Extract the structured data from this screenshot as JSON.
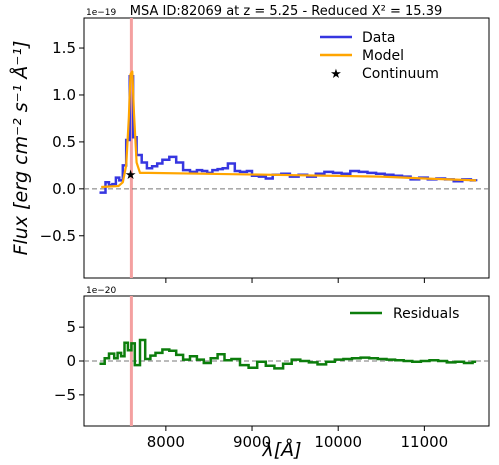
{
  "chart_data": [
    {
      "type": "line",
      "title": "MSA ID:82069 at z = 5.25 - Reduced X² = 15.39",
      "ylabel": "Flux [erg cm⁻² s⁻¹ Å⁻¹]",
      "xlabel": "",
      "y_multiplier_label": "1e−19",
      "xlim": [
        7050,
        11750
      ],
      "ylim": [
        -0.95,
        1.82
      ],
      "y_scale": 1e-19,
      "y_ticks": [
        -0.5,
        0.0,
        0.5,
        1.0,
        1.5
      ],
      "y_tick_labels": [
        "−0.5",
        "0.0",
        "0.5",
        "1.0",
        "1.5"
      ],
      "vline_x": 7600,
      "hline_y": 0.0,
      "legend_position": "top-right",
      "series": [
        {
          "name": "Data",
          "color": "#3636e0",
          "style": "step",
          "x": [
            7230,
            7300,
            7340,
            7380,
            7420,
            7460,
            7500,
            7540,
            7580,
            7620,
            7660,
            7720,
            7780,
            7840,
            7900,
            7960,
            8040,
            8120,
            8200,
            8280,
            8360,
            8420,
            8480,
            8540,
            8600,
            8660,
            8720,
            8800,
            8860,
            8940,
            9000,
            9080,
            9160,
            9240,
            9340,
            9440,
            9540,
            9640,
            9740,
            9840,
            9940,
            10040,
            10140,
            10240,
            10340,
            10440,
            10540,
            10640,
            10740,
            10840,
            10940,
            11040,
            11140,
            11240,
            11340,
            11440,
            11540,
            11600
          ],
          "values": [
            -0.04,
            0.07,
            0.04,
            0.05,
            0.12,
            0.09,
            0.25,
            0.52,
            1.2,
            0.55,
            0.36,
            0.28,
            0.22,
            0.24,
            0.27,
            0.31,
            0.34,
            0.28,
            0.2,
            0.18,
            0.2,
            0.19,
            0.17,
            0.2,
            0.21,
            0.22,
            0.27,
            0.19,
            0.18,
            0.19,
            0.14,
            0.13,
            0.11,
            0.15,
            0.16,
            0.13,
            0.15,
            0.13,
            0.16,
            0.18,
            0.17,
            0.16,
            0.19,
            0.18,
            0.17,
            0.16,
            0.15,
            0.14,
            0.13,
            0.1,
            0.12,
            0.1,
            0.11,
            0.1,
            0.08,
            0.1,
            0.09,
            0.08
          ]
        },
        {
          "name": "Model",
          "color": "#ffa500",
          "style": "line",
          "x": [
            7250,
            7450,
            7500,
            7540,
            7570,
            7590,
            7610,
            7630,
            7660,
            7700,
            7800,
            8500,
            9500,
            10500,
            11000,
            11600
          ],
          "values": [
            0.02,
            0.03,
            0.07,
            0.25,
            0.75,
            1.22,
            1.25,
            0.8,
            0.28,
            0.17,
            0.17,
            0.16,
            0.145,
            0.13,
            0.11,
            0.09
          ]
        },
        {
          "name": "Continuum",
          "color": "#000000",
          "style": "marker-star",
          "x": [
            7590
          ],
          "values": [
            0.16
          ]
        }
      ]
    },
    {
      "type": "line",
      "title": "",
      "ylabel": "",
      "xlabel": "λ[Å]",
      "y_multiplier_label": "1e−20",
      "xlim": [
        7050,
        11750
      ],
      "ylim": [
        -9.6,
        9.6
      ],
      "y_scale": 1e-20,
      "x_ticks": [
        8000,
        9000,
        10000,
        11000
      ],
      "x_tick_labels": [
        "8000",
        "9000",
        "10000",
        "11000"
      ],
      "y_ticks": [
        -5,
        0,
        5
      ],
      "y_tick_labels": [
        "−5",
        "0",
        "5"
      ],
      "vline_x": 7600,
      "hline_y": 0,
      "legend_position": "top-right",
      "series": [
        {
          "name": "Residuals",
          "color": "#0c7d0c",
          "style": "step",
          "x": [
            7230,
            7290,
            7340,
            7400,
            7440,
            7480,
            7520,
            7560,
            7600,
            7640,
            7700,
            7760,
            7820,
            7880,
            7960,
            8040,
            8120,
            8200,
            8280,
            8360,
            8440,
            8520,
            8600,
            8680,
            8760,
            8860,
            8960,
            9060,
            9160,
            9260,
            9360,
            9460,
            9560,
            9660,
            9760,
            9860,
            9960,
            10060,
            10160,
            10260,
            10360,
            10460,
            10560,
            10660,
            10760,
            10860,
            10960,
            11060,
            11160,
            11260,
            11360,
            11460,
            11560,
            11600
          ],
          "values": [
            -0.4,
            0.4,
            1.1,
            0.4,
            1.2,
            0.7,
            2.7,
            1.6,
            2.6,
            -0.6,
            3.1,
            0.3,
            0.8,
            1.2,
            1.7,
            1.5,
            0.9,
            0.2,
            0.7,
            0.2,
            -0.3,
            0.4,
            1.0,
            0.1,
            0.3,
            -0.6,
            -1.0,
            -0.1,
            -0.7,
            -1.1,
            -0.4,
            0.2,
            0.0,
            -0.2,
            -0.5,
            -0.1,
            0.2,
            0.3,
            0.4,
            0.5,
            0.4,
            0.3,
            0.2,
            0.1,
            0.0,
            -0.1,
            0.0,
            0.1,
            0.0,
            -0.2,
            -0.1,
            -0.3,
            -0.1,
            -0.1
          ]
        }
      ]
    }
  ]
}
